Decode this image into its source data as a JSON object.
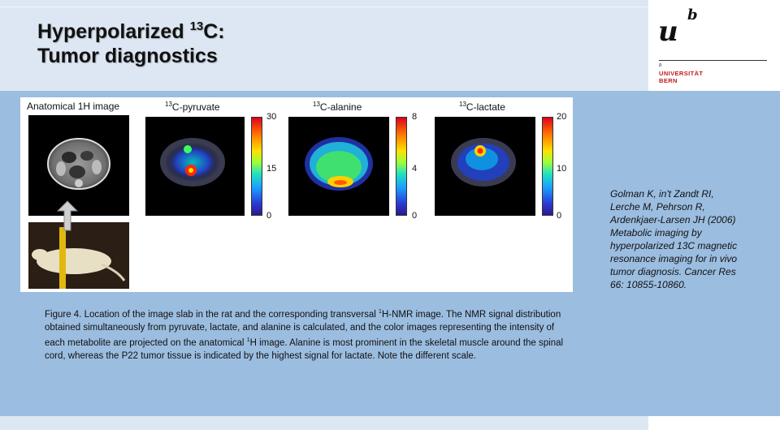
{
  "title": {
    "line1_prefix": "Hyperpolarized ",
    "line1_sup": "13",
    "line1_suffix": "C:",
    "line2": "Tumor diagnostics"
  },
  "logo": {
    "mark": "u",
    "sup": "b",
    "small_b": "b",
    "line1": "UNIVERSITÄT",
    "line2": "BERN"
  },
  "figure": {
    "panels": [
      {
        "label_prefix": "Anatomical 1H image",
        "label_sup": "",
        "label_suffix": ""
      },
      {
        "label_prefix": "",
        "label_sup": "13",
        "label_suffix": "C-pyruvate",
        "scale_max": "30",
        "scale_mid": "15",
        "scale_min": "0"
      },
      {
        "label_prefix": "",
        "label_sup": "13",
        "label_suffix": "C-alanine",
        "scale_max": "8",
        "scale_mid": "4",
        "scale_min": "0"
      },
      {
        "label_prefix": "",
        "label_sup": "13",
        "label_suffix": "C-lactate",
        "scale_max": "20",
        "scale_mid": "10",
        "scale_min": "0"
      }
    ]
  },
  "caption": {
    "part1": "Figure 4. Location of the image slab in the rat and the corresponding transversal ",
    "sup1": "1",
    "part2": "H-NMR  image. The  NMR signal distribution obtained simultaneously from pyruvate, lactate, and alanine is calculated, and the color images representing the intensity of each metabolite are projected on the anatomical ",
    "sup2": "1",
    "part3": "H image. Alanine is most prominent in the skeletal muscle around the spinal cord, whereas the P22 tumor tissue is indicated by the highest signal for lactate. Note the different scale."
  },
  "citation": "Golman K, in't Zandt RI, Lerche M, Pehrson R, Ardenkjaer-Larsen  JH (2006) Metabolic imaging by hyperpolarized  13C magnetic resonance imaging for in vivo tumor diagnosis. Cancer Res 66: 10855-10860."
}
